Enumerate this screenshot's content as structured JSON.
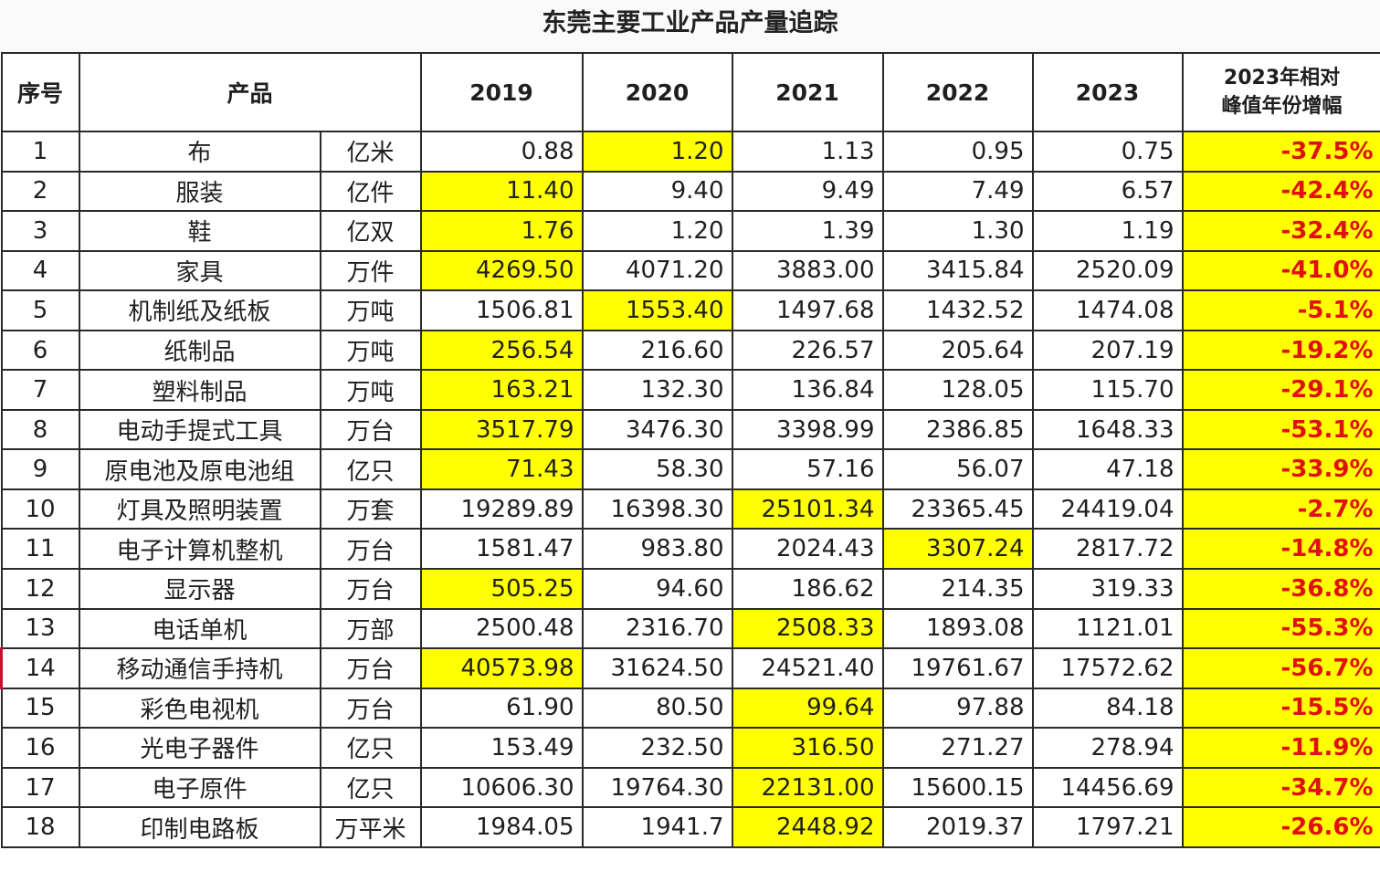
{
  "title": "东莞主要工业产品产量追踪",
  "headers": {
    "seq": "序号",
    "product": "产品",
    "years": [
      "2019",
      "2020",
      "2021",
      "2022",
      "2023"
    ],
    "change_line1": "2023年相对",
    "change_line2": "峰值年份增幅"
  },
  "highlight_color": "#ffff00",
  "negative_color": "#e01010",
  "emphasis_row_color": "#c8102e",
  "rows": [
    {
      "seq": "1",
      "name": "布",
      "unit": "亿米",
      "vals": [
        "0.88",
        "1.20",
        "1.13",
        "0.95",
        "0.75"
      ],
      "peak": 1,
      "pct": "-37.5%"
    },
    {
      "seq": "2",
      "name": "服装",
      "unit": "亿件",
      "vals": [
        "11.40",
        "9.40",
        "9.49",
        "7.49",
        "6.57"
      ],
      "peak": 0,
      "pct": "-42.4%"
    },
    {
      "seq": "3",
      "name": "鞋",
      "unit": "亿双",
      "vals": [
        "1.76",
        "1.20",
        "1.39",
        "1.30",
        "1.19"
      ],
      "peak": 0,
      "pct": "-32.4%"
    },
    {
      "seq": "4",
      "name": "家具",
      "unit": "万件",
      "vals": [
        "4269.50",
        "4071.20",
        "3883.00",
        "3415.84",
        "2520.09"
      ],
      "peak": 0,
      "pct": "-41.0%"
    },
    {
      "seq": "5",
      "name": "机制纸及纸板",
      "unit": "万吨",
      "vals": [
        "1506.81",
        "1553.40",
        "1497.68",
        "1432.52",
        "1474.08"
      ],
      "peak": 1,
      "pct": "-5.1%"
    },
    {
      "seq": "6",
      "name": "纸制品",
      "unit": "万吨",
      "vals": [
        "256.54",
        "216.60",
        "226.57",
        "205.64",
        "207.19"
      ],
      "peak": 0,
      "pct": "-19.2%"
    },
    {
      "seq": "7",
      "name": "塑料制品",
      "unit": "万吨",
      "vals": [
        "163.21",
        "132.30",
        "136.84",
        "128.05",
        "115.70"
      ],
      "peak": 0,
      "pct": "-29.1%"
    },
    {
      "seq": "8",
      "name": "电动手提式工具",
      "unit": "万台",
      "vals": [
        "3517.79",
        "3476.30",
        "3398.99",
        "2386.85",
        "1648.33"
      ],
      "peak": 0,
      "pct": "-53.1%"
    },
    {
      "seq": "9",
      "name": "原电池及原电池组",
      "unit": "亿只",
      "vals": [
        "71.43",
        "58.30",
        "57.16",
        "56.07",
        "47.18"
      ],
      "peak": 0,
      "pct": "-33.9%"
    },
    {
      "seq": "10",
      "name": "灯具及照明装置",
      "unit": "万套",
      "vals": [
        "19289.89",
        "16398.30",
        "25101.34",
        "23365.45",
        "24419.04"
      ],
      "peak": 2,
      "pct": "-2.7%"
    },
    {
      "seq": "11",
      "name": "电子计算机整机",
      "unit": "万台",
      "vals": [
        "1581.47",
        "983.80",
        "2024.43",
        "3307.24",
        "2817.72"
      ],
      "peak": 3,
      "pct": "-14.8%"
    },
    {
      "seq": "12",
      "name": "显示器",
      "unit": "万台",
      "vals": [
        "505.25",
        "94.60",
        "186.62",
        "214.35",
        "319.33"
      ],
      "peak": 0,
      "pct": "-36.8%"
    },
    {
      "seq": "13",
      "name": "电话单机",
      "unit": "万部",
      "vals": [
        "2500.48",
        "2316.70",
        "2508.33",
        "1893.08",
        "1121.01"
      ],
      "peak": 2,
      "pct": "-55.3%"
    },
    {
      "seq": "14",
      "name": "移动通信手持机",
      "unit": "万台",
      "vals": [
        "40573.98",
        "31624.50",
        "24521.40",
        "19761.67",
        "17572.62"
      ],
      "peak": 0,
      "pct": "-56.7%",
      "emphasis": true
    },
    {
      "seq": "15",
      "name": "彩色电视机",
      "unit": "万台",
      "vals": [
        "61.90",
        "80.50",
        "99.64",
        "97.88",
        "84.18"
      ],
      "peak": 2,
      "pct": "-15.5%"
    },
    {
      "seq": "16",
      "name": "光电子器件",
      "unit": "亿只",
      "vals": [
        "153.49",
        "232.50",
        "316.50",
        "271.27",
        "278.94"
      ],
      "peak": 2,
      "pct": "-11.9%"
    },
    {
      "seq": "17",
      "name": "电子原件",
      "unit": "亿只",
      "vals": [
        "10606.30",
        "19764.30",
        "22131.00",
        "15600.15",
        "14456.69"
      ],
      "peak": 2,
      "pct": "-34.7%"
    },
    {
      "seq": "18",
      "name": "印制电路板",
      "unit": "万平米",
      "vals": [
        "1984.05",
        "1941.7",
        "2448.92",
        "2019.37",
        "1797.21"
      ],
      "peak": 2,
      "pct": "-26.6%"
    }
  ]
}
